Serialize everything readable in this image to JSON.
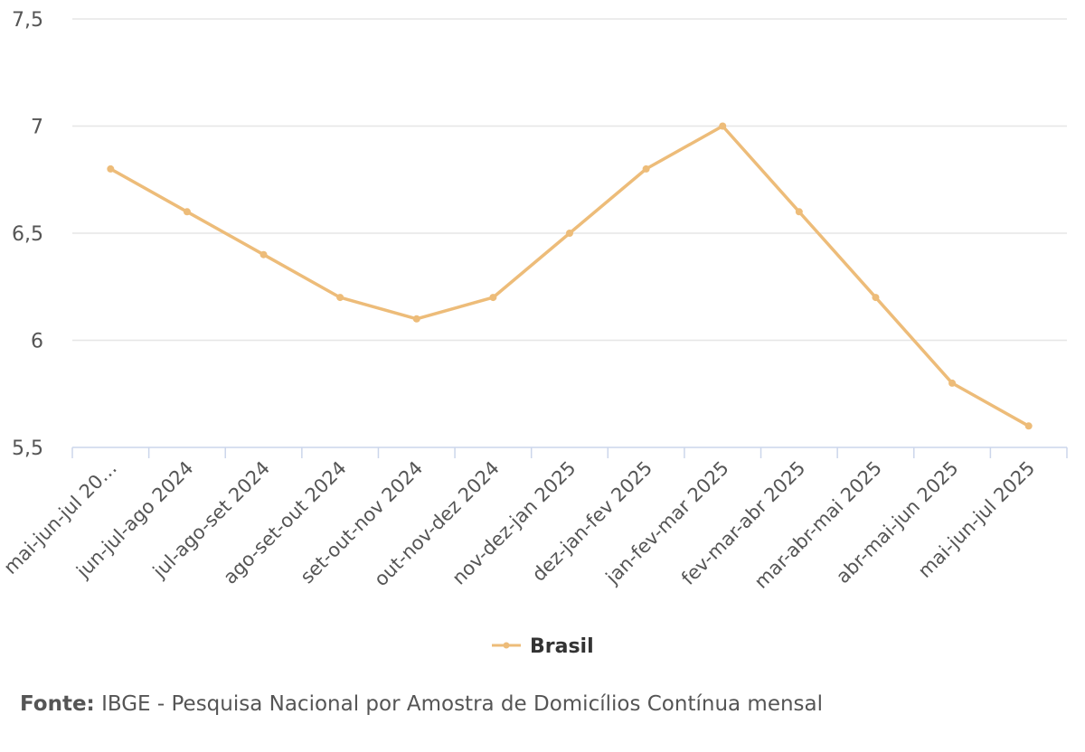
{
  "chart_data": {
    "type": "line",
    "categories": [
      "mai-jun-jul 20…",
      "jun-jul-ago 2024",
      "jul-ago-set 2024",
      "ago-set-out 2024",
      "set-out-nov 2024",
      "out-nov-dez 2024",
      "nov-dez-jan 2025",
      "dez-jan-fev 2025",
      "jan-fev-mar 2025",
      "fev-mar-abr 2025",
      "mar-abr-mai 2025",
      "abr-mai-jun 2025",
      "mai-jun-jul 2025"
    ],
    "series": [
      {
        "name": "Brasil",
        "color": "#EDBC79",
        "values": [
          6.8,
          6.6,
          6.4,
          6.2,
          6.1,
          6.2,
          6.5,
          6.8,
          7.0,
          6.6,
          6.2,
          5.8,
          5.6
        ]
      }
    ],
    "ylim": [
      5.5,
      7.5
    ],
    "yticks": [
      {
        "value": 5.5,
        "label": "5,5"
      },
      {
        "value": 6,
        "label": "6"
      },
      {
        "value": 6.5,
        "label": "6,5"
      },
      {
        "value": 7,
        "label": "7"
      },
      {
        "value": 7.5,
        "label": "7,5"
      }
    ],
    "grid": true,
    "legend_position": "bottom-center"
  },
  "source": {
    "label": "Fonte:",
    "text": "IBGE - Pesquisa Nacional por Amostra de Domicílios Contínua mensal"
  },
  "colors": {
    "grid": "#E6E6E6",
    "axis": "#CCD6EB"
  }
}
